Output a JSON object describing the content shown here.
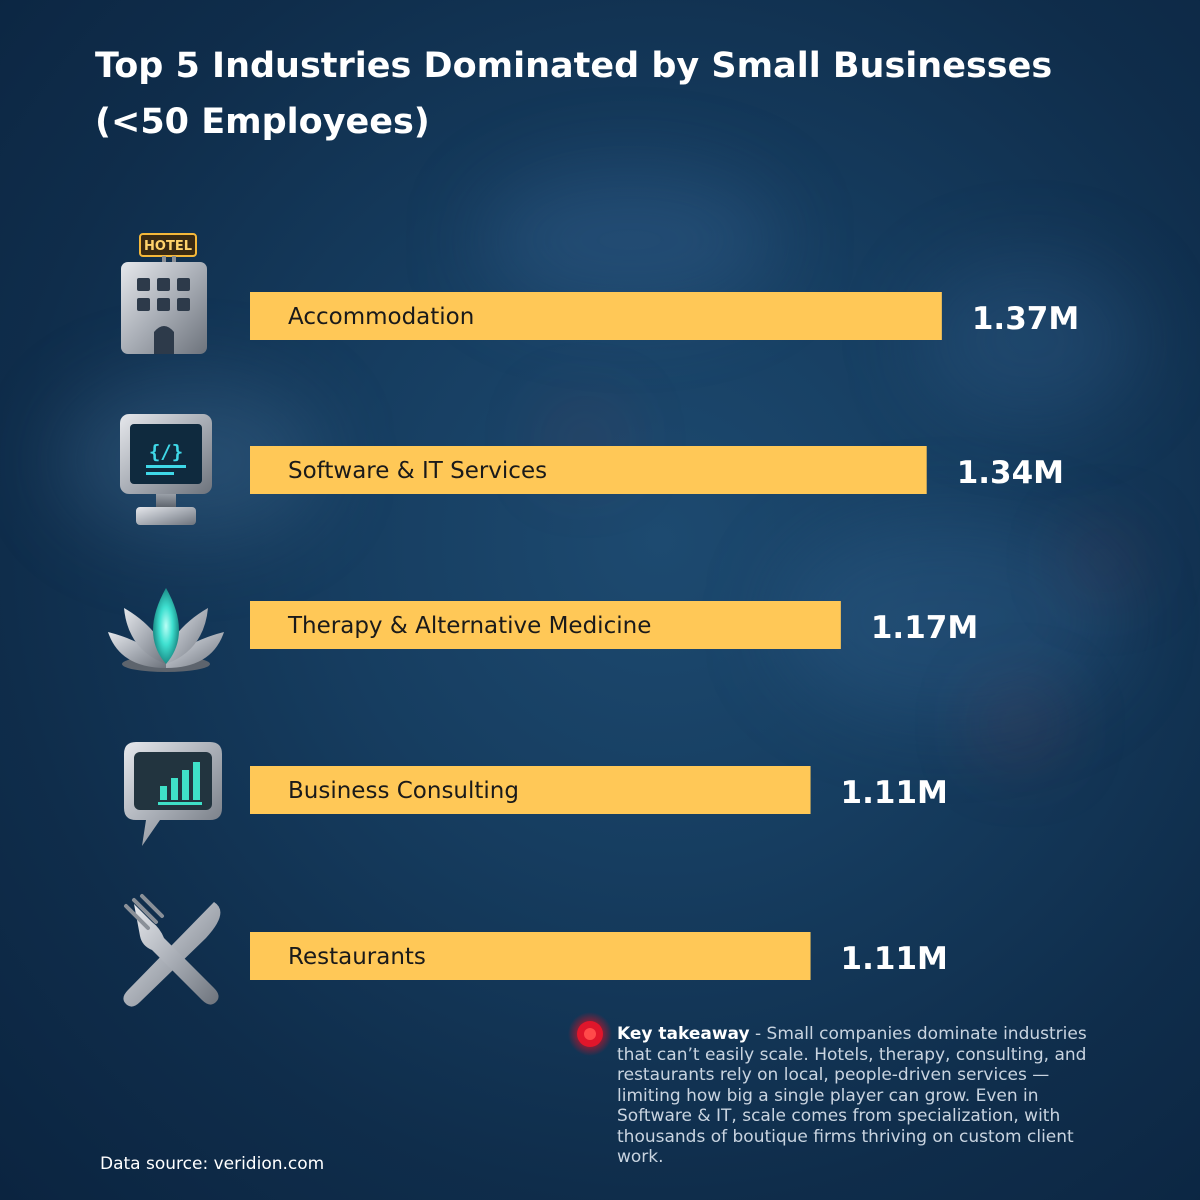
{
  "title_lines": [
    "Top 5 Industries Dominated by Small Businesses",
    "(<50 Employees)"
  ],
  "chart_data": {
    "type": "bar",
    "orientation": "horizontal",
    "categories": [
      "Accommodation",
      "Software & IT Services",
      "Therapy & Alternative Medicine",
      "Business Consulting",
      "Restaurants"
    ],
    "values": [
      1.37,
      1.34,
      1.17,
      1.11,
      1.11
    ],
    "value_labels": [
      "1.37M",
      "1.34M",
      "1.17M",
      "1.11M",
      "1.11M"
    ],
    "icons": [
      "hotel-building-icon",
      "computer-monitor-icon",
      "lotus-icon",
      "chat-bar-chart-icon",
      "fork-knife-icon"
    ],
    "title": "Top 5 Industries Dominated by Small Businesses (<50 Employees)",
    "xlabel": "",
    "ylabel": "",
    "grid": false,
    "legend": "none"
  },
  "colors": {
    "bar": "#ffc857",
    "bar_text": "#1a1a1a",
    "background": "#163d60",
    "takeaway_dot": "#e0162b"
  },
  "takeaway": {
    "label": "Key takeaway",
    "text": " - Small companies dominate industries that can’t easily scale. Hotels, therapy, consulting, and restaurants rely on local, people-driven services — limiting how big a single player can grow. Even in Software & IT, scale comes from specialization, with thousands of boutique firms thriving on custom client work."
  },
  "source": "Data source: veridion.com"
}
